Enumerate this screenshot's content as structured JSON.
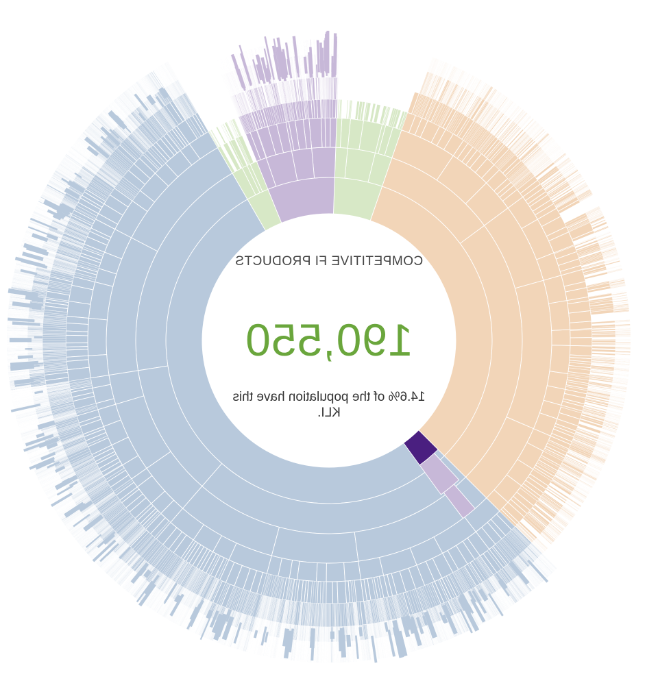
{
  "center": {
    "title": "COMPETITIVE FI PRODUCTS",
    "value": "190,550",
    "subtitle": "14.6% of the population have this KLI."
  },
  "colors": {
    "blue": "#b8c9dc",
    "orange": "#f2d5b8",
    "purple": "#c7b8d8",
    "green": "#d7e8c6",
    "highlight": "#4a1f80",
    "value": "#6aa63c"
  },
  "chart_data": {
    "type": "sunburst",
    "mirrored_horizontally": true,
    "highlighted_segment": "COMPETITIVE FI PRODUCTS",
    "total_value": 190550,
    "population_share_percent": 14.6,
    "top_level_groups": [
      {
        "color": "blue",
        "share": 0.555
      },
      {
        "color": "orange",
        "share": 0.305
      },
      {
        "color": "green",
        "share": 0.045
      },
      {
        "color": "purple",
        "share": 0.07
      },
      {
        "color": "green",
        "share": 0.025
      }
    ]
  }
}
